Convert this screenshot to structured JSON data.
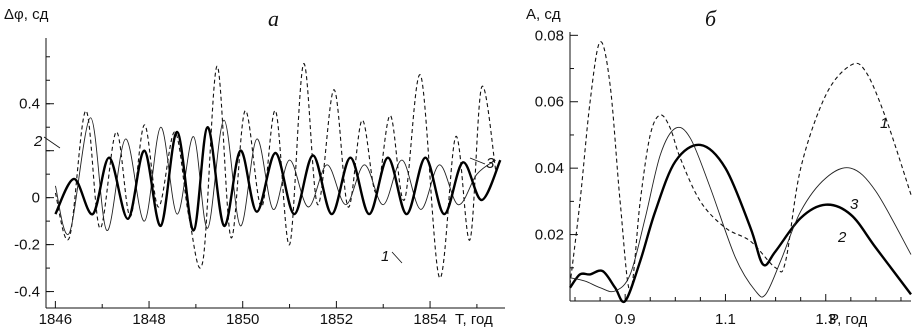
{
  "chart_data": [
    {
      "type": "line",
      "panel": "а",
      "ylabel": "Δφ, сд",
      "xlabel": "T, год",
      "xlim": [
        1845.8,
        1855.6
      ],
      "ylim": [
        -0.47,
        0.68
      ],
      "x_ticks": [
        1846,
        1848,
        1850,
        1852,
        1854
      ],
      "y_ticks": [
        0.4,
        0.2,
        0,
        -0.2,
        -0.4
      ],
      "y_tick_labels": [
        "0.4",
        "",
        "0",
        "-0.2",
        "-0.4"
      ],
      "grid": false,
      "curve_labels": [
        "1",
        "2",
        "3"
      ],
      "series": [
        {
          "name": "1",
          "style": "dashed",
          "x": [
            1846.0,
            1846.3,
            1846.65,
            1846.95,
            1847.3,
            1847.6,
            1847.9,
            1848.2,
            1848.55,
            1848.85,
            1849.15,
            1849.45,
            1849.75,
            1850.05,
            1850.4,
            1850.7,
            1851.0,
            1851.3,
            1851.6,
            1851.95,
            1852.25,
            1852.55,
            1852.85,
            1853.15,
            1853.45,
            1853.8,
            1854.2,
            1854.55,
            1854.85,
            1855.1,
            1855.4
          ],
          "y": [
            0.02,
            -0.17,
            0.37,
            -0.13,
            0.28,
            -0.08,
            0.31,
            -0.04,
            0.28,
            -0.08,
            -0.27,
            0.56,
            -0.17,
            0.37,
            -0.04,
            0.37,
            -0.2,
            0.57,
            -0.03,
            0.46,
            -0.04,
            0.33,
            0.02,
            0.35,
            -0.01,
            0.52,
            -0.34,
            0.26,
            -0.18,
            0.47,
            0.12
          ]
        },
        {
          "name": "2",
          "style": "thin",
          "x": [
            1846.0,
            1846.3,
            1846.75,
            1847.1,
            1847.5,
            1847.9,
            1848.25,
            1848.6,
            1848.95,
            1849.25,
            1849.6,
            1849.95,
            1850.3,
            1850.65,
            1851.0,
            1851.4,
            1851.8,
            1852.2,
            1852.6,
            1853.0,
            1853.4,
            1853.8,
            1854.2,
            1854.6,
            1855.0,
            1855.4
          ],
          "y": [
            0.05,
            -0.15,
            0.34,
            -0.14,
            0.25,
            -0.1,
            0.3,
            -0.07,
            0.26,
            -0.13,
            0.33,
            -0.12,
            0.25,
            -0.05,
            0.16,
            -0.04,
            0.14,
            -0.03,
            0.14,
            -0.03,
            0.16,
            -0.05,
            0.14,
            -0.03,
            0.1,
            0.16
          ]
        },
        {
          "name": "3",
          "style": "bold",
          "x": [
            1846.0,
            1846.4,
            1846.8,
            1847.15,
            1847.55,
            1847.9,
            1848.25,
            1848.6,
            1848.95,
            1849.25,
            1849.6,
            1849.95,
            1850.3,
            1850.7,
            1851.1,
            1851.5,
            1851.9,
            1852.3,
            1852.7,
            1853.1,
            1853.5,
            1853.9,
            1854.3,
            1854.7,
            1855.1,
            1855.5
          ],
          "y": [
            -0.07,
            0.08,
            -0.07,
            0.17,
            -0.09,
            0.2,
            -0.12,
            0.28,
            -0.14,
            0.3,
            -0.12,
            0.2,
            -0.06,
            0.19,
            -0.07,
            0.18,
            -0.07,
            0.17,
            -0.07,
            0.17,
            -0.07,
            0.17,
            -0.07,
            0.15,
            -0.01,
            0.16
          ]
        }
      ]
    },
    {
      "type": "line",
      "panel": "б",
      "ylabel": "A, сд",
      "xlabel": "P, год",
      "xlim": [
        0.79,
        1.47
      ],
      "ylim": [
        0.0,
        0.081
      ],
      "x_ticks": [
        0.9,
        1.1,
        1.3
      ],
      "y_ticks": [
        0.08,
        0.06,
        0.04,
        0.02
      ],
      "grid": false,
      "curve_labels": [
        "1",
        "2",
        "3"
      ],
      "series": [
        {
          "name": "1",
          "style": "dashed",
          "x": [
            0.79,
            0.81,
            0.83,
            0.85,
            0.87,
            0.89,
            0.91,
            0.93,
            0.95,
            0.97,
            0.99,
            1.01,
            1.05,
            1.1,
            1.15,
            1.2,
            1.22,
            1.25,
            1.3,
            1.35,
            1.38,
            1.42,
            1.47
          ],
          "y": [
            0.005,
            0.03,
            0.06,
            0.078,
            0.065,
            0.03,
            0.003,
            0.03,
            0.05,
            0.056,
            0.052,
            0.043,
            0.03,
            0.022,
            0.018,
            0.01,
            0.012,
            0.04,
            0.062,
            0.071,
            0.069,
            0.055,
            0.032
          ]
        },
        {
          "name": "2",
          "style": "bold",
          "x": [
            0.79,
            0.81,
            0.83,
            0.855,
            0.88,
            0.9,
            0.93,
            0.96,
            1.0,
            1.05,
            1.1,
            1.15,
            1.175,
            1.2,
            1.25,
            1.3,
            1.35,
            1.4,
            1.47
          ],
          "y": [
            0.004,
            0.008,
            0.008,
            0.009,
            0.004,
            0.0,
            0.012,
            0.027,
            0.042,
            0.047,
            0.04,
            0.022,
            0.011,
            0.015,
            0.025,
            0.029,
            0.026,
            0.016,
            0.002
          ]
        },
        {
          "name": "3",
          "style": "thin",
          "x": [
            0.79,
            0.82,
            0.85,
            0.88,
            0.91,
            0.94,
            0.97,
            1.0,
            1.03,
            1.07,
            1.12,
            1.16,
            1.18,
            1.21,
            1.25,
            1.3,
            1.35,
            1.4,
            1.47
          ],
          "y": [
            0.007,
            0.006,
            0.004,
            0.003,
            0.008,
            0.025,
            0.044,
            0.052,
            0.049,
            0.034,
            0.013,
            0.003,
            0.002,
            0.012,
            0.027,
            0.037,
            0.04,
            0.033,
            0.014
          ]
        }
      ]
    }
  ]
}
